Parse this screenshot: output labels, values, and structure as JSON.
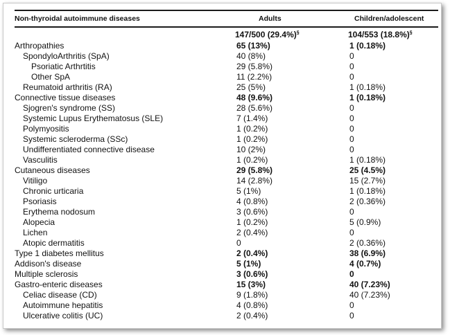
{
  "header": {
    "col1": "Non-thyroidal autoimmune diseases",
    "col2": "Adults",
    "col3": "Children/adolescent"
  },
  "totals": {
    "adults": "147/500 (29.4%)",
    "children": "104/553 (18.8%)",
    "mark": "§"
  },
  "rows": [
    {
      "label": "Arthropathies",
      "adults": "65 (13%)",
      "children": "1 (0.18%)",
      "level": 0,
      "bold": true
    },
    {
      "label": "SpondyloArthritis (SpA)",
      "adults": "40 (8%)",
      "children": "0",
      "level": 1,
      "bold": false
    },
    {
      "label": "Psoriatic Arthrtitis",
      "adults": "29 (5.8%)",
      "children": "0",
      "level": 2,
      "bold": false
    },
    {
      "label": "Other SpA",
      "adults": "11 (2.2%)",
      "children": "0",
      "level": 2,
      "bold": false
    },
    {
      "label": "Reumatoid arthritis (RA)",
      "adults": "25 (5%)",
      "children": "1 (0.18%)",
      "level": 1,
      "bold": false
    },
    {
      "label": "Connective tissue diseases",
      "adults": "48 (9.6%)",
      "children": "1 (0.18%)",
      "level": 0,
      "bold": true
    },
    {
      "label": "Sjogren's syndrome (SS)",
      "adults": "28 (5.6%)",
      "children": "0",
      "level": 1,
      "bold": false
    },
    {
      "label": "Systemic Lupus Erythematosus (SLE)",
      "adults": "7 (1.4%)",
      "children": "0",
      "level": 1,
      "bold": false
    },
    {
      "label": "Polymyositis",
      "adults": "1 (0.2%)",
      "children": "0",
      "level": 1,
      "bold": false
    },
    {
      "label": "Systemic scleroderma (SSc)",
      "adults": "1 (0.2%)",
      "children": "0",
      "level": 1,
      "bold": false
    },
    {
      "label": "Undifferentiated connective disease",
      "adults": "10 (2%)",
      "children": "0",
      "level": 1,
      "bold": false
    },
    {
      "label": "Vasculitis",
      "adults": "1 (0.2%)",
      "children": "1 (0.18%)",
      "level": 1,
      "bold": false
    },
    {
      "label": "Cutaneous diseases",
      "adults": "29 (5.8%)",
      "children": "25 (4.5%)",
      "level": 0,
      "bold": true
    },
    {
      "label": "Vitiligo",
      "adults": "14 (2.8%)",
      "children": "15 (2.7%)",
      "level": 1,
      "bold": false
    },
    {
      "label": "Chronic urticaria",
      "adults": "5 (1%)",
      "children": "1 (0.18%)",
      "level": 1,
      "bold": false
    },
    {
      "label": "Psoriasis",
      "adults": "4 (0.8%)",
      "children": "2 (0.36%)",
      "level": 1,
      "bold": false
    },
    {
      "label": "Erythema nodosum",
      "adults": "3 (0.6%)",
      "children": "0",
      "level": 1,
      "bold": false
    },
    {
      "label": "Alopecia",
      "adults": "1 (0.2%)",
      "children": "5 (0.9%)",
      "level": 1,
      "bold": false
    },
    {
      "label": "Lichen",
      "adults": "2 (0.4%)",
      "children": "0",
      "level": 1,
      "bold": false
    },
    {
      "label": "Atopic dermatitis",
      "adults": "0",
      "children": "2 (0.36%)",
      "level": 1,
      "bold": false
    },
    {
      "label": "Type 1 diabetes mellitus",
      "adults": "2 (0.4%)",
      "children": "38 (6.9%)",
      "level": 0,
      "bold": true
    },
    {
      "label": "Addison's disease",
      "adults": "5 (1%)",
      "children": "4 (0.7%)",
      "level": 0,
      "bold": true
    },
    {
      "label": "Multiple sclerosis",
      "adults": "3 (0.6%)",
      "children": "0",
      "level": 0,
      "bold": true
    },
    {
      "label": "Gastro-enteric diseases",
      "adults": "15 (3%)",
      "children": "40 (7.23%)",
      "level": 0,
      "bold": true
    },
    {
      "label": "Celiac disease (CD)",
      "adults": "9 (1.8%)",
      "children": "40 (7.23%)",
      "level": 1,
      "bold": false
    },
    {
      "label": "Autoimmune hepatitis",
      "adults": "4 (0.8%)",
      "children": "0",
      "level": 1,
      "bold": false
    },
    {
      "label": "Ulcerative colitis (UC)",
      "adults": "2 (0.4%)",
      "children": "0",
      "level": 1,
      "bold": false
    }
  ]
}
